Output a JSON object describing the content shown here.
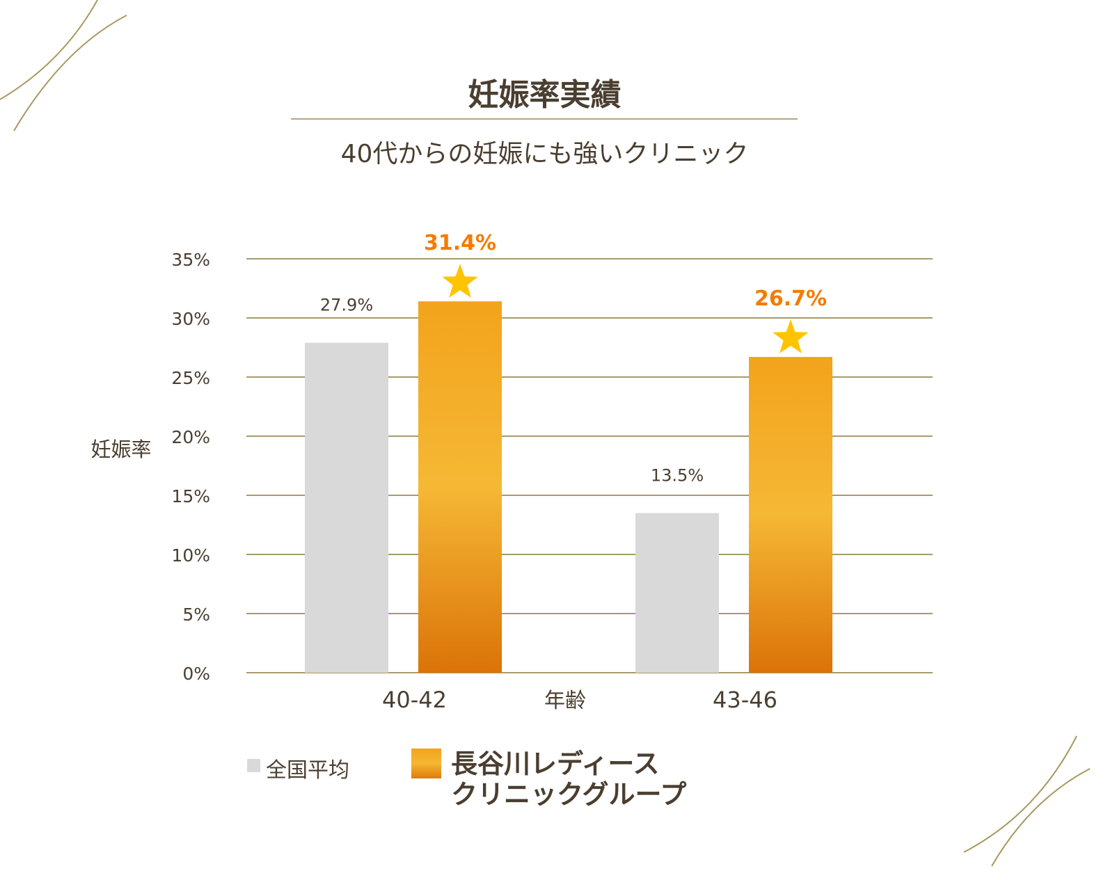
{
  "chart_data": {
    "type": "bar",
    "title": "妊娠率実績",
    "subtitle": "40代からの妊娠にも強いクリニック",
    "xlabel": "年齢",
    "ylabel": "妊娠率",
    "categories": [
      "40-42",
      "43-46"
    ],
    "series": [
      {
        "name": "全国平均",
        "values": [
          27.9,
          13.5
        ],
        "labels": [
          "27.9%",
          "13.5%"
        ],
        "color": "#d9d9d9"
      },
      {
        "name": "長谷川レディースクリニックグループ",
        "name_lines": [
          "長谷川レディース",
          "クリニックグループ"
        ],
        "values": [
          31.4,
          26.7
        ],
        "labels": [
          "31.4%",
          "26.7%"
        ],
        "color": "#f4a41d",
        "label_color": "#f47b00",
        "marker": "star-icon"
      }
    ],
    "ylim": [
      0,
      35
    ],
    "yticks": [
      0,
      5,
      10,
      15,
      20,
      25,
      30,
      35
    ],
    "ytick_labels": [
      "0%",
      "5%",
      "10%",
      "15%",
      "20%",
      "25%",
      "30%",
      "35%"
    ],
    "grid": true,
    "legend": "bottom"
  }
}
